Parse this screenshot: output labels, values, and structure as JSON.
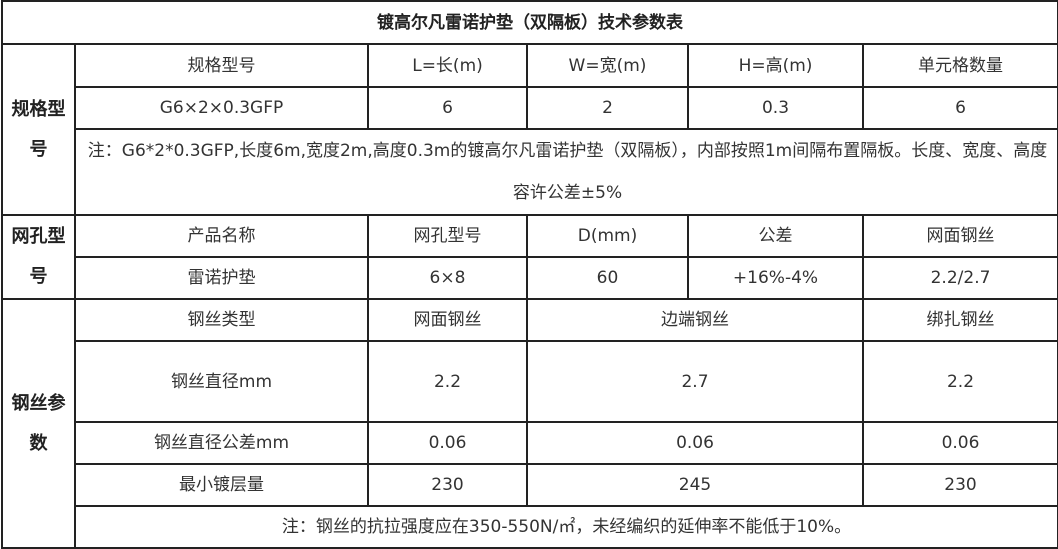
{
  "title": "镀高尔凡雷诺护垫（双隔板）技术参数表",
  "spec": {
    "side_label": "规格型号",
    "headers": [
      "规格型号",
      "L=长(m)",
      "W=宽(m)",
      "H=高(m)",
      "单元格数量"
    ],
    "row": [
      "G6×2×0.3GFP",
      "6",
      "2",
      "0.3",
      "6"
    ],
    "note": "注：G6*2*0.3GFP,长度6m,宽度2m,高度0.3m的镀高尔凡雷诺护垫（双隔板），内部按照1m间隔布置隔板。长度、宽度、高度容许公差±5%"
  },
  "mesh": {
    "side_label": "网孔型号",
    "headers": [
      "产品名称",
      "网孔型号",
      "D(mm)",
      "公差",
      "网面钢丝"
    ],
    "row": [
      "雷诺护垫",
      "6×8",
      "60",
      "+16%-4%",
      "2.2/2.7"
    ]
  },
  "wire": {
    "side_label": "钢丝参数",
    "headers": [
      "钢丝类型",
      "网面钢丝",
      "边端钢丝",
      "绑扎钢丝"
    ],
    "diameter": [
      "钢丝直径mm",
      "2.2",
      "2.7",
      "2.2"
    ],
    "tolerance": [
      "钢丝直径公差mm",
      "0.06",
      "0.06",
      "0.06"
    ],
    "coating": [
      "最小镀层量",
      "230",
      "245",
      "230"
    ],
    "note": "注：钢丝的抗拉强度应在350-550N/㎡，未经编织的延伸率不能低于10%。"
  }
}
